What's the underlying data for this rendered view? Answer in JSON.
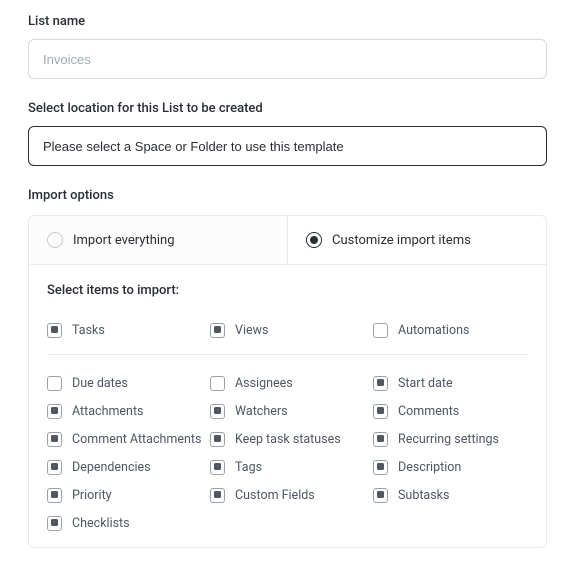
{
  "list_name": {
    "label": "List name",
    "placeholder": "Invoices",
    "value": ""
  },
  "location": {
    "label": "Select location for this List to be created",
    "button_text": "Please select a Space or Folder to use this template"
  },
  "import": {
    "label": "Import options",
    "radio": {
      "everything": {
        "label": "Import everything",
        "selected": false
      },
      "customize": {
        "label": "Customize import items",
        "selected": true
      }
    },
    "body_title": "Select items to import:",
    "group_top": [
      {
        "key": "tasks",
        "label": "Tasks",
        "checked": true
      },
      {
        "key": "views",
        "label": "Views",
        "checked": true
      },
      {
        "key": "automations",
        "label": "Automations",
        "checked": false
      }
    ],
    "grid": {
      "col1": [
        {
          "key": "due_dates",
          "label": "Due dates",
          "checked": false
        },
        {
          "key": "attachments",
          "label": "Attachments",
          "checked": true
        },
        {
          "key": "comment_attachments",
          "label": "Comment Attachments",
          "checked": true
        },
        {
          "key": "dependencies",
          "label": "Dependencies",
          "checked": true
        },
        {
          "key": "priority",
          "label": "Priority",
          "checked": true
        },
        {
          "key": "checklists",
          "label": "Checklists",
          "checked": true
        }
      ],
      "col2": [
        {
          "key": "assignees",
          "label": "Assignees",
          "checked": false
        },
        {
          "key": "watchers",
          "label": "Watchers",
          "checked": true
        },
        {
          "key": "keep_task_statuses",
          "label": "Keep task statuses",
          "checked": true
        },
        {
          "key": "tags",
          "label": "Tags",
          "checked": true
        },
        {
          "key": "custom_fields",
          "label": "Custom Fields",
          "checked": true
        }
      ],
      "col3": [
        {
          "key": "start_date",
          "label": "Start date",
          "checked": true
        },
        {
          "key": "comments",
          "label": "Comments",
          "checked": true
        },
        {
          "key": "recurring_settings",
          "label": "Recurring settings",
          "checked": true
        },
        {
          "key": "description",
          "label": "Description",
          "checked": true
        },
        {
          "key": "subtasks",
          "label": "Subtasks",
          "checked": true
        }
      ]
    }
  },
  "colors": {
    "border": "#d6d9de",
    "border_dark": "#2a2e34",
    "text": "#2a2e34",
    "muted": "#4f5762",
    "panel_border": "#e8eaed"
  }
}
